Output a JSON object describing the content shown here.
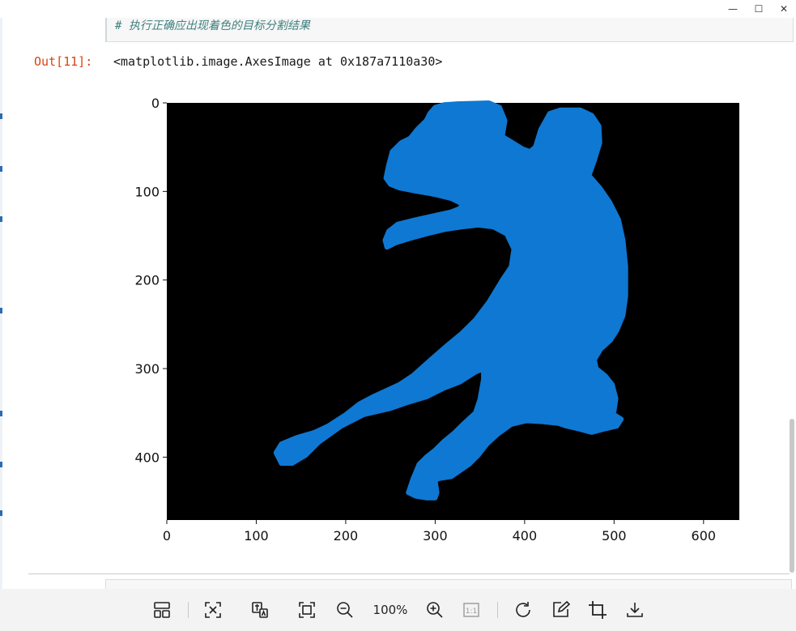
{
  "window": {
    "controls": {
      "minimize": "—",
      "maximize": "☐",
      "close": "✕"
    }
  },
  "notebook": {
    "input_comment": "# 执行正确应出现着色的目标分割结果",
    "output_prompt": "Out[11]:",
    "output_text": "<matplotlib.image.AxesImage at 0x187a7110a30>"
  },
  "chart_data": {
    "type": "image",
    "xlim": [
      0,
      640
    ],
    "ylim": [
      471,
      0
    ],
    "xticks": [
      0,
      100,
      200,
      300,
      400,
      500,
      600
    ],
    "yticks": [
      0,
      100,
      200,
      300,
      400
    ],
    "background_color": "#000000",
    "mask_color": "#0f78d2",
    "grid": false,
    "mask_outline": [
      [
        360,
        0
      ],
      [
        372,
        5
      ],
      [
        378,
        20
      ],
      [
        375,
        38
      ],
      [
        385,
        44
      ],
      [
        398,
        52
      ],
      [
        406,
        55
      ],
      [
        412,
        50
      ],
      [
        418,
        30
      ],
      [
        428,
        12
      ],
      [
        440,
        8
      ],
      [
        462,
        8
      ],
      [
        475,
        14
      ],
      [
        483,
        26
      ],
      [
        484,
        45
      ],
      [
        478,
        65
      ],
      [
        472,
        82
      ],
      [
        484,
        96
      ],
      [
        495,
        112
      ],
      [
        505,
        132
      ],
      [
        510,
        155
      ],
      [
        513,
        185
      ],
      [
        513,
        218
      ],
      [
        510,
        240
      ],
      [
        503,
        257
      ],
      [
        496,
        268
      ],
      [
        485,
        278
      ],
      [
        478,
        290
      ],
      [
        480,
        300
      ],
      [
        490,
        308
      ],
      [
        498,
        318
      ],
      [
        502,
        334
      ],
      [
        500,
        348
      ],
      [
        497,
        350
      ],
      [
        508,
        357
      ],
      [
        503,
        365
      ],
      [
        490,
        368
      ],
      [
        475,
        372
      ],
      [
        460,
        368
      ],
      [
        447,
        365
      ],
      [
        438,
        362
      ],
      [
        420,
        360
      ],
      [
        402,
        359
      ],
      [
        385,
        363
      ],
      [
        370,
        374
      ],
      [
        358,
        385
      ],
      [
        348,
        398
      ],
      [
        338,
        408
      ],
      [
        328,
        415
      ],
      [
        318,
        422
      ],
      [
        305,
        424
      ],
      [
        300,
        426
      ],
      [
        302,
        440
      ],
      [
        300,
        446
      ],
      [
        290,
        446
      ],
      [
        278,
        444
      ],
      [
        270,
        440
      ],
      [
        275,
        425
      ],
      [
        282,
        408
      ],
      [
        290,
        400
      ],
      [
        300,
        392
      ],
      [
        310,
        382
      ],
      [
        322,
        372
      ],
      [
        332,
        362
      ],
      [
        345,
        350
      ],
      [
        350,
        335
      ],
      [
        354,
        312
      ],
      [
        354,
        300
      ],
      [
        345,
        304
      ],
      [
        328,
        315
      ],
      [
        310,
        322
      ],
      [
        290,
        332
      ],
      [
        270,
        338
      ],
      [
        250,
        345
      ],
      [
        220,
        352
      ],
      [
        195,
        365
      ],
      [
        170,
        383
      ],
      [
        155,
        398
      ],
      [
        140,
        407
      ],
      [
        128,
        407
      ],
      [
        122,
        395
      ],
      [
        128,
        385
      ],
      [
        145,
        378
      ],
      [
        165,
        372
      ],
      [
        180,
        365
      ],
      [
        200,
        352
      ],
      [
        215,
        340
      ],
      [
        230,
        332
      ],
      [
        260,
        318
      ],
      [
        275,
        308
      ],
      [
        295,
        290
      ],
      [
        312,
        275
      ],
      [
        330,
        260
      ],
      [
        345,
        245
      ],
      [
        360,
        225
      ],
      [
        375,
        200
      ],
      [
        385,
        185
      ],
      [
        388,
        165
      ],
      [
        380,
        148
      ],
      [
        365,
        140
      ],
      [
        348,
        138
      ],
      [
        330,
        140
      ],
      [
        310,
        143
      ],
      [
        290,
        148
      ],
      [
        272,
        153
      ],
      [
        256,
        158
      ],
      [
        246,
        163
      ],
      [
        244,
        155
      ],
      [
        248,
        145
      ],
      [
        258,
        137
      ],
      [
        278,
        132
      ],
      [
        300,
        127
      ],
      [
        318,
        123
      ],
      [
        328,
        119
      ],
      [
        330,
        114
      ],
      [
        318,
        108
      ],
      [
        302,
        104
      ],
      [
        292,
        102
      ],
      [
        280,
        100
      ],
      [
        270,
        98
      ],
      [
        260,
        96
      ],
      [
        250,
        92
      ],
      [
        245,
        85
      ],
      [
        248,
        70
      ],
      [
        252,
        55
      ],
      [
        262,
        45
      ],
      [
        272,
        40
      ],
      [
        280,
        30
      ],
      [
        290,
        20
      ],
      [
        294,
        12
      ],
      [
        300,
        5
      ],
      [
        310,
        2
      ],
      [
        325,
        1
      ]
    ]
  },
  "toolbar": {
    "zoom_label": "100%"
  }
}
